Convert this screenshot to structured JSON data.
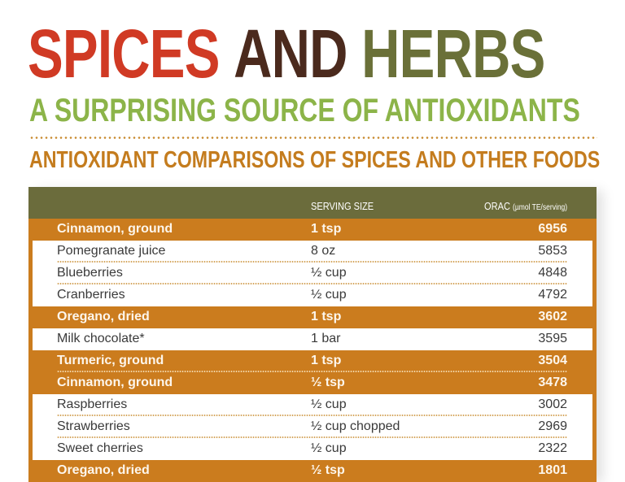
{
  "title": {
    "word1": "SPICES",
    "word2": "AND",
    "word3": "HERBS",
    "colors": {
      "word1": "#D03A24",
      "word2": "#4B2A1D",
      "word3": "#6A7038"
    }
  },
  "subtitle": "A SURPRISING SOURCE OF ANTIOXIDANTS",
  "section_heading": "ANTIOXIDANT COMPARISONS OF SPICES AND OTHER FOODS",
  "colors": {
    "subtitle": "#8CB449",
    "section_heading": "#C47C1E",
    "table_header_bg": "#6B6C3C",
    "spice_row_bg": "#CB7C1E",
    "food_row_bg": "#FFFFFF"
  },
  "table": {
    "columns": {
      "food": "",
      "serving": "SERVING SIZE",
      "orac": "ORAC",
      "orac_unit": "(µmol TE/serving)"
    },
    "rows": [
      {
        "food": "Cinnamon, ground",
        "serving": "1 tsp",
        "orac": "6956",
        "type": "spice"
      },
      {
        "food": "Pomegranate juice",
        "serving": "8 oz",
        "orac": "5853",
        "type": "food"
      },
      {
        "food": "Blueberries",
        "serving": "½ cup",
        "orac": "4848",
        "type": "food"
      },
      {
        "food": "Cranberries",
        "serving": "½ cup",
        "orac": "4792",
        "type": "food"
      },
      {
        "food": "Oregano, dried",
        "serving": "1 tsp",
        "orac": "3602",
        "type": "spice"
      },
      {
        "food": "Milk chocolate*",
        "serving": "1 bar",
        "orac": "3595",
        "type": "food"
      },
      {
        "food": "Turmeric, ground",
        "serving": "1 tsp",
        "orac": "3504",
        "type": "spice"
      },
      {
        "food": "Cinnamon, ground",
        "serving": "½ tsp",
        "orac": "3478",
        "type": "spice"
      },
      {
        "food": "Raspberries",
        "serving": "½ cup",
        "orac": "3002",
        "type": "food"
      },
      {
        "food": "Strawberries",
        "serving": "½ cup chopped",
        "orac": "2969",
        "type": "food"
      },
      {
        "food": "Sweet cherries",
        "serving": "½ cup",
        "orac": "2322",
        "type": "food"
      },
      {
        "food": "Oregano, dried",
        "serving": "½ tsp",
        "orac": "1801",
        "type": "spice"
      }
    ]
  }
}
